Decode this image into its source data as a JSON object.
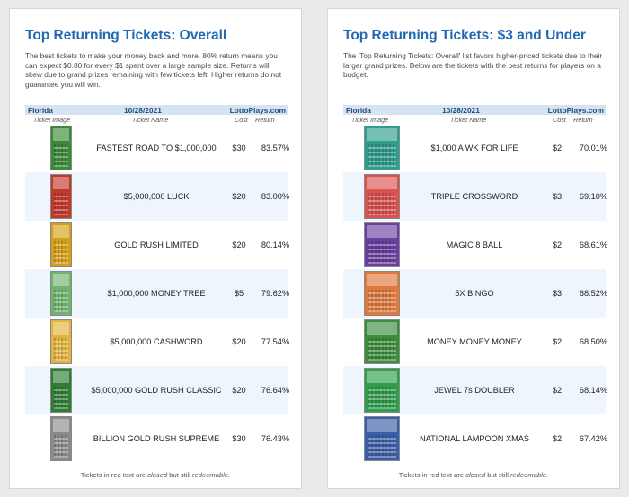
{
  "left_card": {
    "title": "Top Returning Tickets: Overall",
    "description": "The best tickets to make your money back and more. 80% return means you can expect $0.80 for every $1 spent over a large sample size. Returns will skew due to grand prizes remaining with few tickets left. Higher returns do not guarantee you will win.",
    "table_header": {
      "state": "Florida",
      "date": "10/28/2021",
      "site": "LottoPlays.com"
    },
    "columns": {
      "image": "Ticket Image",
      "name": "Ticket Name",
      "cost": "Cost",
      "return": "Return"
    },
    "rows": [
      {
        "name": "FASTEST ROAD TO $1,000,000",
        "cost": "$30",
        "return": "83.57%",
        "thumb_color": "#3a8a3a"
      },
      {
        "name": "$5,000,000 LUCK",
        "cost": "$20",
        "return": "83.00%",
        "thumb_color": "#c0392b"
      },
      {
        "name": "GOLD RUSH LIMITED",
        "cost": "$20",
        "return": "80.14%",
        "thumb_color": "#d4a017"
      },
      {
        "name": "$1,000,000 MONEY TREE",
        "cost": "$5",
        "return": "79.62%",
        "thumb_color": "#6fb36f"
      },
      {
        "name": "$5,000,000 CASHWORD",
        "cost": "$20",
        "return": "77.54%",
        "thumb_color": "#e3b23c"
      },
      {
        "name": "$5,000,000 GOLD RUSH CLASSIC",
        "cost": "$20",
        "return": "76.64%",
        "thumb_color": "#2e7d32"
      },
      {
        "name": "BILLION GOLD RUSH SUPREME",
        "cost": "$30",
        "return": "76.43%",
        "thumb_color": "#8a8a8a"
      }
    ],
    "footer": {
      "prefix": "Tickets in red text are ",
      "closed": "closed",
      "middle": " but still ",
      "redeemable": "redeemable."
    }
  },
  "right_card": {
    "title": "Top Returning Tickets: $3 and Under",
    "description": "The 'Top Returning Tickets: Overall' list favors higher-priced tickets due to their larger grand prizes. Below are the tickets with the best returns for players on a budget.",
    "table_header": {
      "state": "Florida",
      "date": "10/28/2021",
      "site": "LottoPlays.com"
    },
    "columns": {
      "image": "Ticket Image",
      "name": "Ticket Name",
      "cost": "Cost",
      "return": "Return"
    },
    "rows": [
      {
        "name": "$1,000 A WK FOR LIFE",
        "cost": "$2",
        "return": "70.01%",
        "thumb_color": "#2f9e8f"
      },
      {
        "name": "TRIPLE CROSSWORD",
        "cost": "$3",
        "return": "69.10%",
        "thumb_color": "#d9534f"
      },
      {
        "name": "MAGIC 8 BALL",
        "cost": "$2",
        "return": "68.61%",
        "thumb_color": "#6a3fa0"
      },
      {
        "name": "5X BINGO",
        "cost": "$3",
        "return": "68.52%",
        "thumb_color": "#e07a3c"
      },
      {
        "name": "MONEY MONEY MONEY",
        "cost": "$2",
        "return": "68.50%",
        "thumb_color": "#3c8d3c"
      },
      {
        "name": "JEWEL 7s DOUBLER",
        "cost": "$2",
        "return": "68.14%",
        "thumb_color": "#2e9e4a"
      },
      {
        "name": "NATIONAL LAMPOON XMAS",
        "cost": "$2",
        "return": "67.42%",
        "thumb_color": "#3a5fa8"
      }
    ],
    "footer": {
      "prefix": "Tickets in red text are ",
      "closed": "closed",
      "middle": " but still ",
      "redeemable": "redeemable."
    }
  }
}
